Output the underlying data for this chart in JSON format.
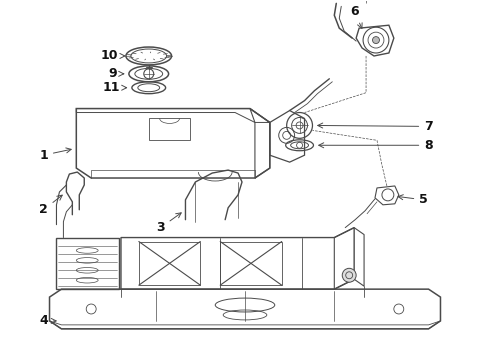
{
  "bg_color": "#ffffff",
  "line_color": "#4a4a4a",
  "label_color": "#111111",
  "figsize": [
    4.9,
    3.6
  ],
  "dpi": 100
}
